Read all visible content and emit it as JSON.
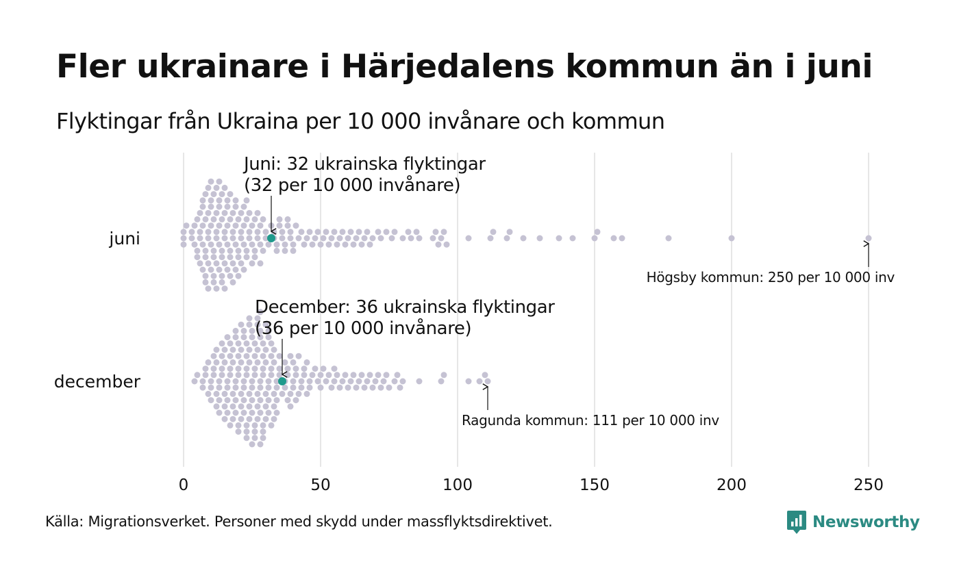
{
  "title": "Fler ukrainare i Härjedalens kommun än i juni",
  "subtitle": "Flyktingar från Ukraina per 10 000 invånare och kommun",
  "source": "Källa: Migrationsverket. Personer med skydd under massflyktsdirektivet.",
  "logo_text": "Newsworthy",
  "colors": {
    "dot": "#c5c2d3",
    "highlight": "#1f9a8c",
    "grid": "#d6d6d6",
    "logo": "#2b8a82"
  },
  "chart_data": {
    "type": "scatter",
    "variant": "beeswarm",
    "xlim": [
      0,
      250
    ],
    "xticks": [
      "0",
      "50",
      "100",
      "150",
      "200",
      "250"
    ],
    "grid": true,
    "series": [
      {
        "name": "juni",
        "highlight_value": 32,
        "highlight_label": [
          "Juni: 32 ukrainska flyktingar",
          "(32 per 10 000 invånare)"
        ],
        "max_label": "Högsby kommun: 250 per 10 000 inv",
        "values": [
          0,
          0,
          0,
          1,
          3,
          3,
          4,
          4,
          5,
          5,
          5,
          6,
          6,
          6,
          6,
          7,
          7,
          7,
          7,
          7,
          8,
          8,
          8,
          8,
          8,
          8,
          9,
          9,
          9,
          9,
          9,
          9,
          10,
          10,
          10,
          10,
          10,
          10,
          11,
          11,
          11,
          11,
          11,
          11,
          12,
          12,
          12,
          12,
          12,
          12,
          13,
          13,
          13,
          13,
          13,
          13,
          14,
          14,
          14,
          14,
          14,
          14,
          15,
          15,
          15,
          15,
          15,
          15,
          16,
          16,
          16,
          16,
          16,
          17,
          17,
          17,
          17,
          17,
          18,
          18,
          18,
          18,
          18,
          19,
          19,
          19,
          19,
          19,
          20,
          20,
          20,
          20,
          21,
          21,
          21,
          21,
          22,
          22,
          22,
          22,
          23,
          23,
          23,
          23,
          24,
          24,
          24,
          25,
          25,
          25,
          26,
          26,
          26,
          27,
          27,
          27,
          28,
          28,
          28,
          29,
          29,
          30,
          30,
          31,
          32,
          33,
          33,
          34,
          34,
          35,
          35,
          36,
          36,
          37,
          37,
          38,
          38,
          39,
          39,
          40,
          40,
          41,
          42,
          43,
          44,
          45,
          46,
          47,
          48,
          49,
          50,
          51,
          52,
          53,
          54,
          55,
          56,
          57,
          58,
          59,
          60,
          61,
          62,
          63,
          64,
          65,
          66,
          67,
          68,
          69,
          71,
          72,
          74,
          76,
          77,
          80,
          82,
          83,
          85,
          86,
          91,
          92,
          93,
          94,
          95,
          96,
          104,
          112,
          113,
          118,
          119,
          124,
          130,
          137,
          142,
          150,
          151,
          157,
          160,
          177,
          200,
          250
        ]
      },
      {
        "name": "december",
        "highlight_value": 36,
        "highlight_label": [
          "December: 36 ukrainska flyktingar",
          "(36 per 10 000 invånare)"
        ],
        "max_label": "Ragunda kommun: 111 per 10 000 inv",
        "values": [
          4,
          5,
          7,
          7,
          8,
          8,
          9,
          9,
          10,
          10,
          10,
          11,
          11,
          11,
          12,
          12,
          12,
          12,
          13,
          13,
          13,
          13,
          14,
          14,
          14,
          14,
          15,
          15,
          15,
          15,
          15,
          16,
          16,
          16,
          16,
          16,
          17,
          17,
          17,
          17,
          17,
          18,
          18,
          18,
          18,
          18,
          19,
          19,
          19,
          19,
          19,
          19,
          20,
          20,
          20,
          20,
          20,
          20,
          21,
          21,
          21,
          21,
          21,
          21,
          22,
          22,
          22,
          22,
          22,
          22,
          23,
          23,
          23,
          23,
          23,
          23,
          23,
          24,
          24,
          24,
          24,
          24,
          24,
          24,
          25,
          25,
          25,
          25,
          25,
          25,
          25,
          26,
          26,
          26,
          26,
          26,
          26,
          26,
          27,
          27,
          27,
          27,
          27,
          27,
          27,
          28,
          28,
          28,
          28,
          28,
          28,
          28,
          28,
          29,
          29,
          29,
          29,
          29,
          29,
          29,
          30,
          30,
          30,
          30,
          30,
          30,
          31,
          31,
          31,
          31,
          31,
          31,
          32,
          32,
          32,
          32,
          32,
          33,
          33,
          33,
          33,
          33,
          34,
          34,
          34,
          34,
          35,
          35,
          35,
          36,
          37,
          37,
          37,
          38,
          38,
          38,
          39,
          39,
          39,
          40,
          40,
          40,
          41,
          41,
          41,
          42,
          42,
          43,
          43,
          44,
          44,
          45,
          45,
          46,
          46,
          47,
          48,
          49,
          50,
          50,
          51,
          52,
          53,
          54,
          55,
          55,
          56,
          57,
          58,
          59,
          60,
          61,
          62,
          63,
          64,
          65,
          66,
          67,
          68,
          69,
          70,
          71,
          72,
          73,
          74,
          75,
          77,
          78,
          79,
          80,
          86,
          94,
          95,
          104,
          108,
          110,
          111
        ]
      }
    ]
  }
}
